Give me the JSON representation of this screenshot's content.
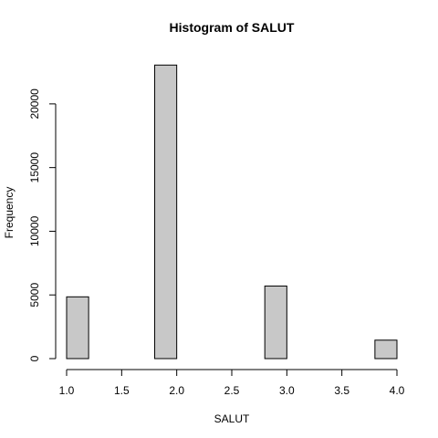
{
  "chart_data": {
    "type": "bar",
    "title": "Histogram of SALUT",
    "xlabel": "SALUT",
    "ylabel": "Frequency",
    "xlim": [
      1.0,
      4.0
    ],
    "ylim": [
      0,
      23000
    ],
    "grid": false,
    "bin_width": 0.2,
    "bins": [
      {
        "start": 1.0,
        "end": 1.2,
        "count": 4850
      },
      {
        "start": 1.2,
        "end": 1.4,
        "count": 0
      },
      {
        "start": 1.4,
        "end": 1.6,
        "count": 0
      },
      {
        "start": 1.6,
        "end": 1.8,
        "count": 0
      },
      {
        "start": 1.8,
        "end": 2.0,
        "count": 23050
      },
      {
        "start": 2.0,
        "end": 2.2,
        "count": 0
      },
      {
        "start": 2.2,
        "end": 2.4,
        "count": 0
      },
      {
        "start": 2.4,
        "end": 2.6,
        "count": 0
      },
      {
        "start": 2.6,
        "end": 2.8,
        "count": 0
      },
      {
        "start": 2.8,
        "end": 3.0,
        "count": 5700
      },
      {
        "start": 3.0,
        "end": 3.2,
        "count": 0
      },
      {
        "start": 3.2,
        "end": 3.4,
        "count": 0
      },
      {
        "start": 3.4,
        "end": 3.6,
        "count": 0
      },
      {
        "start": 3.6,
        "end": 3.8,
        "count": 0
      },
      {
        "start": 3.8,
        "end": 4.0,
        "count": 1450
      }
    ],
    "x_ticks": [
      {
        "value": 1.0,
        "label": "1.0"
      },
      {
        "value": 1.5,
        "label": "1.5"
      },
      {
        "value": 2.0,
        "label": "2.0"
      },
      {
        "value": 2.5,
        "label": "2.5"
      },
      {
        "value": 3.0,
        "label": "3.0"
      },
      {
        "value": 3.5,
        "label": "3.5"
      },
      {
        "value": 4.0,
        "label": "4.0"
      }
    ],
    "y_ticks": [
      {
        "value": 0,
        "label": "0"
      },
      {
        "value": 5000,
        "label": "5000"
      },
      {
        "value": 10000,
        "label": "10000"
      },
      {
        "value": 15000,
        "label": "15000"
      },
      {
        "value": 20000,
        "label": "20000"
      }
    ]
  }
}
